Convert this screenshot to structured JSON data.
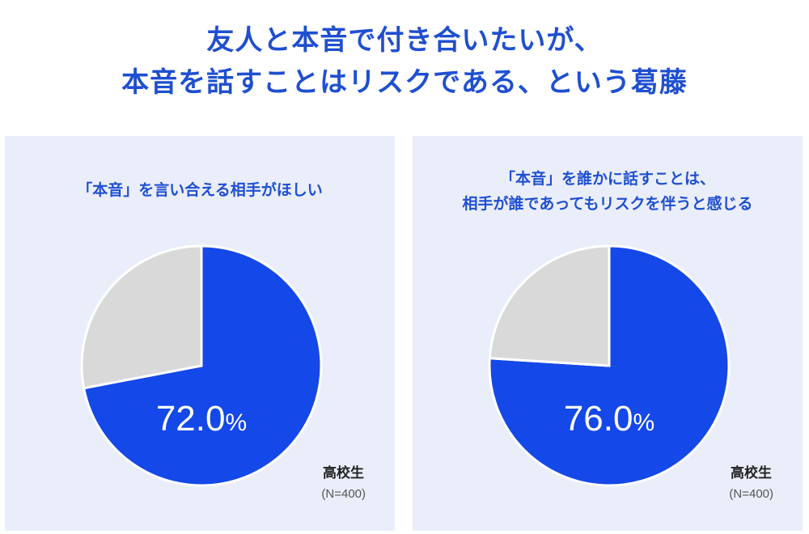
{
  "title": {
    "line1": "友人と本音で付き合いたいが、",
    "line2": "本音を話すことはリスクである、という葛藤"
  },
  "colors": {
    "accent": "#1f4fd1",
    "slice_yes": "#1448e8",
    "slice_rest": "#d9d9d9",
    "panel_bg": "#eaeefb"
  },
  "chart_data": [
    {
      "type": "pie",
      "title": "「本音」を言い合える相手がほしい",
      "subtitle_lines": [
        "「本音」を言い合える相手がほしい"
      ],
      "slices": [
        {
          "value": 72.0,
          "label": "72.0%",
          "color": "#1448e8"
        },
        {
          "value": 28.0,
          "label": "",
          "color": "#d9d9d9"
        }
      ],
      "group": "高校生",
      "n": "(N=400)"
    },
    {
      "type": "pie",
      "title": "「本音」を誰かに話すことは、相手が誰であってもリスクを伴うと感じる",
      "subtitle_lines": [
        "「本音」を誰かに話すことは、",
        "相手が誰であってもリスクを伴うと感じる"
      ],
      "slices": [
        {
          "value": 76.0,
          "label": "76.0%",
          "color": "#1448e8"
        },
        {
          "value": 24.0,
          "label": "",
          "color": "#d9d9d9"
        }
      ],
      "group": "高校生",
      "n": "(N=400)"
    }
  ]
}
